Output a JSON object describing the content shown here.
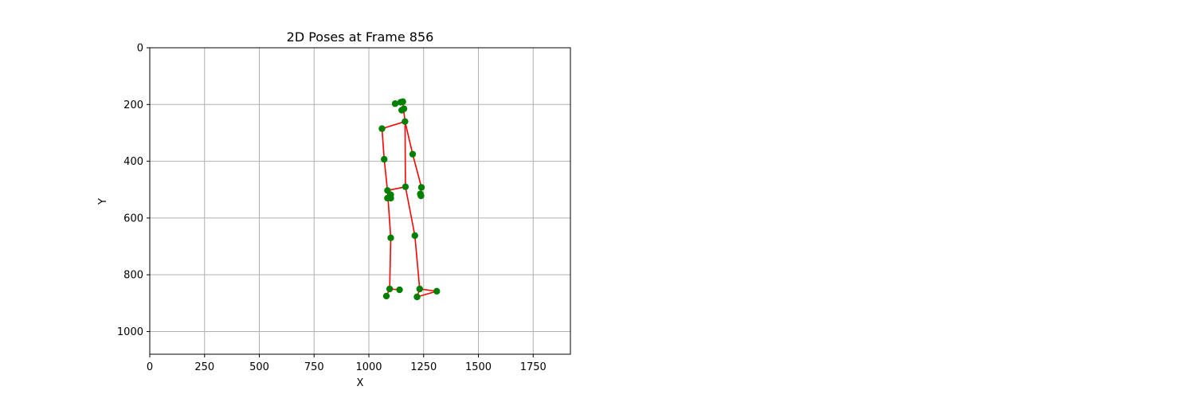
{
  "chart_data": {
    "type": "scatter",
    "title": "2D Poses at Frame 856",
    "xlabel": "X",
    "ylabel": "Y",
    "xlim": [
      0,
      1920
    ],
    "ylim": [
      1080,
      0
    ],
    "y_inverted": true,
    "grid": true,
    "x_ticks": [
      0,
      250,
      500,
      750,
      1000,
      1250,
      1500,
      1750
    ],
    "y_ticks": [
      0,
      200,
      400,
      600,
      800,
      1000
    ],
    "colors": {
      "points": "#008000",
      "bones": "#ff0000",
      "grid": "#b0b0b0"
    },
    "keypoints": [
      {
        "x": 1165,
        "y": 260
      },
      {
        "x": 1060,
        "y": 285
      },
      {
        "x": 1070,
        "y": 393
      },
      {
        "x": 1200,
        "y": 375
      },
      {
        "x": 1240,
        "y": 492
      },
      {
        "x": 1167,
        "y": 490
      },
      {
        "x": 1085,
        "y": 503
      },
      {
        "x": 1210,
        "y": 662
      },
      {
        "x": 1100,
        "y": 670
      },
      {
        "x": 1232,
        "y": 850
      },
      {
        "x": 1095,
        "y": 850
      },
      {
        "x": 1310,
        "y": 858
      },
      {
        "x": 1140,
        "y": 853
      },
      {
        "x": 1220,
        "y": 878
      },
      {
        "x": 1080,
        "y": 875
      },
      {
        "x": 1120,
        "y": 197
      },
      {
        "x": 1145,
        "y": 192
      },
      {
        "x": 1155,
        "y": 190
      },
      {
        "x": 1150,
        "y": 220
      },
      {
        "x": 1160,
        "y": 215
      },
      {
        "x": 1085,
        "y": 530
      },
      {
        "x": 1100,
        "y": 530
      },
      {
        "x": 1100,
        "y": 518
      },
      {
        "x": 1238,
        "y": 522
      },
      {
        "x": 1235,
        "y": 515
      }
    ],
    "bones": [
      [
        17,
        0
      ],
      [
        15,
        16
      ],
      [
        16,
        17
      ],
      [
        0,
        1
      ],
      [
        1,
        2
      ],
      [
        2,
        6
      ],
      [
        0,
        3
      ],
      [
        3,
        4
      ],
      [
        0,
        5
      ],
      [
        5,
        6
      ],
      [
        6,
        8
      ],
      [
        8,
        10
      ],
      [
        10,
        12
      ],
      [
        10,
        14
      ],
      [
        5,
        7
      ],
      [
        7,
        9
      ],
      [
        9,
        11
      ],
      [
        11,
        13
      ],
      [
        13,
        9
      ]
    ]
  }
}
